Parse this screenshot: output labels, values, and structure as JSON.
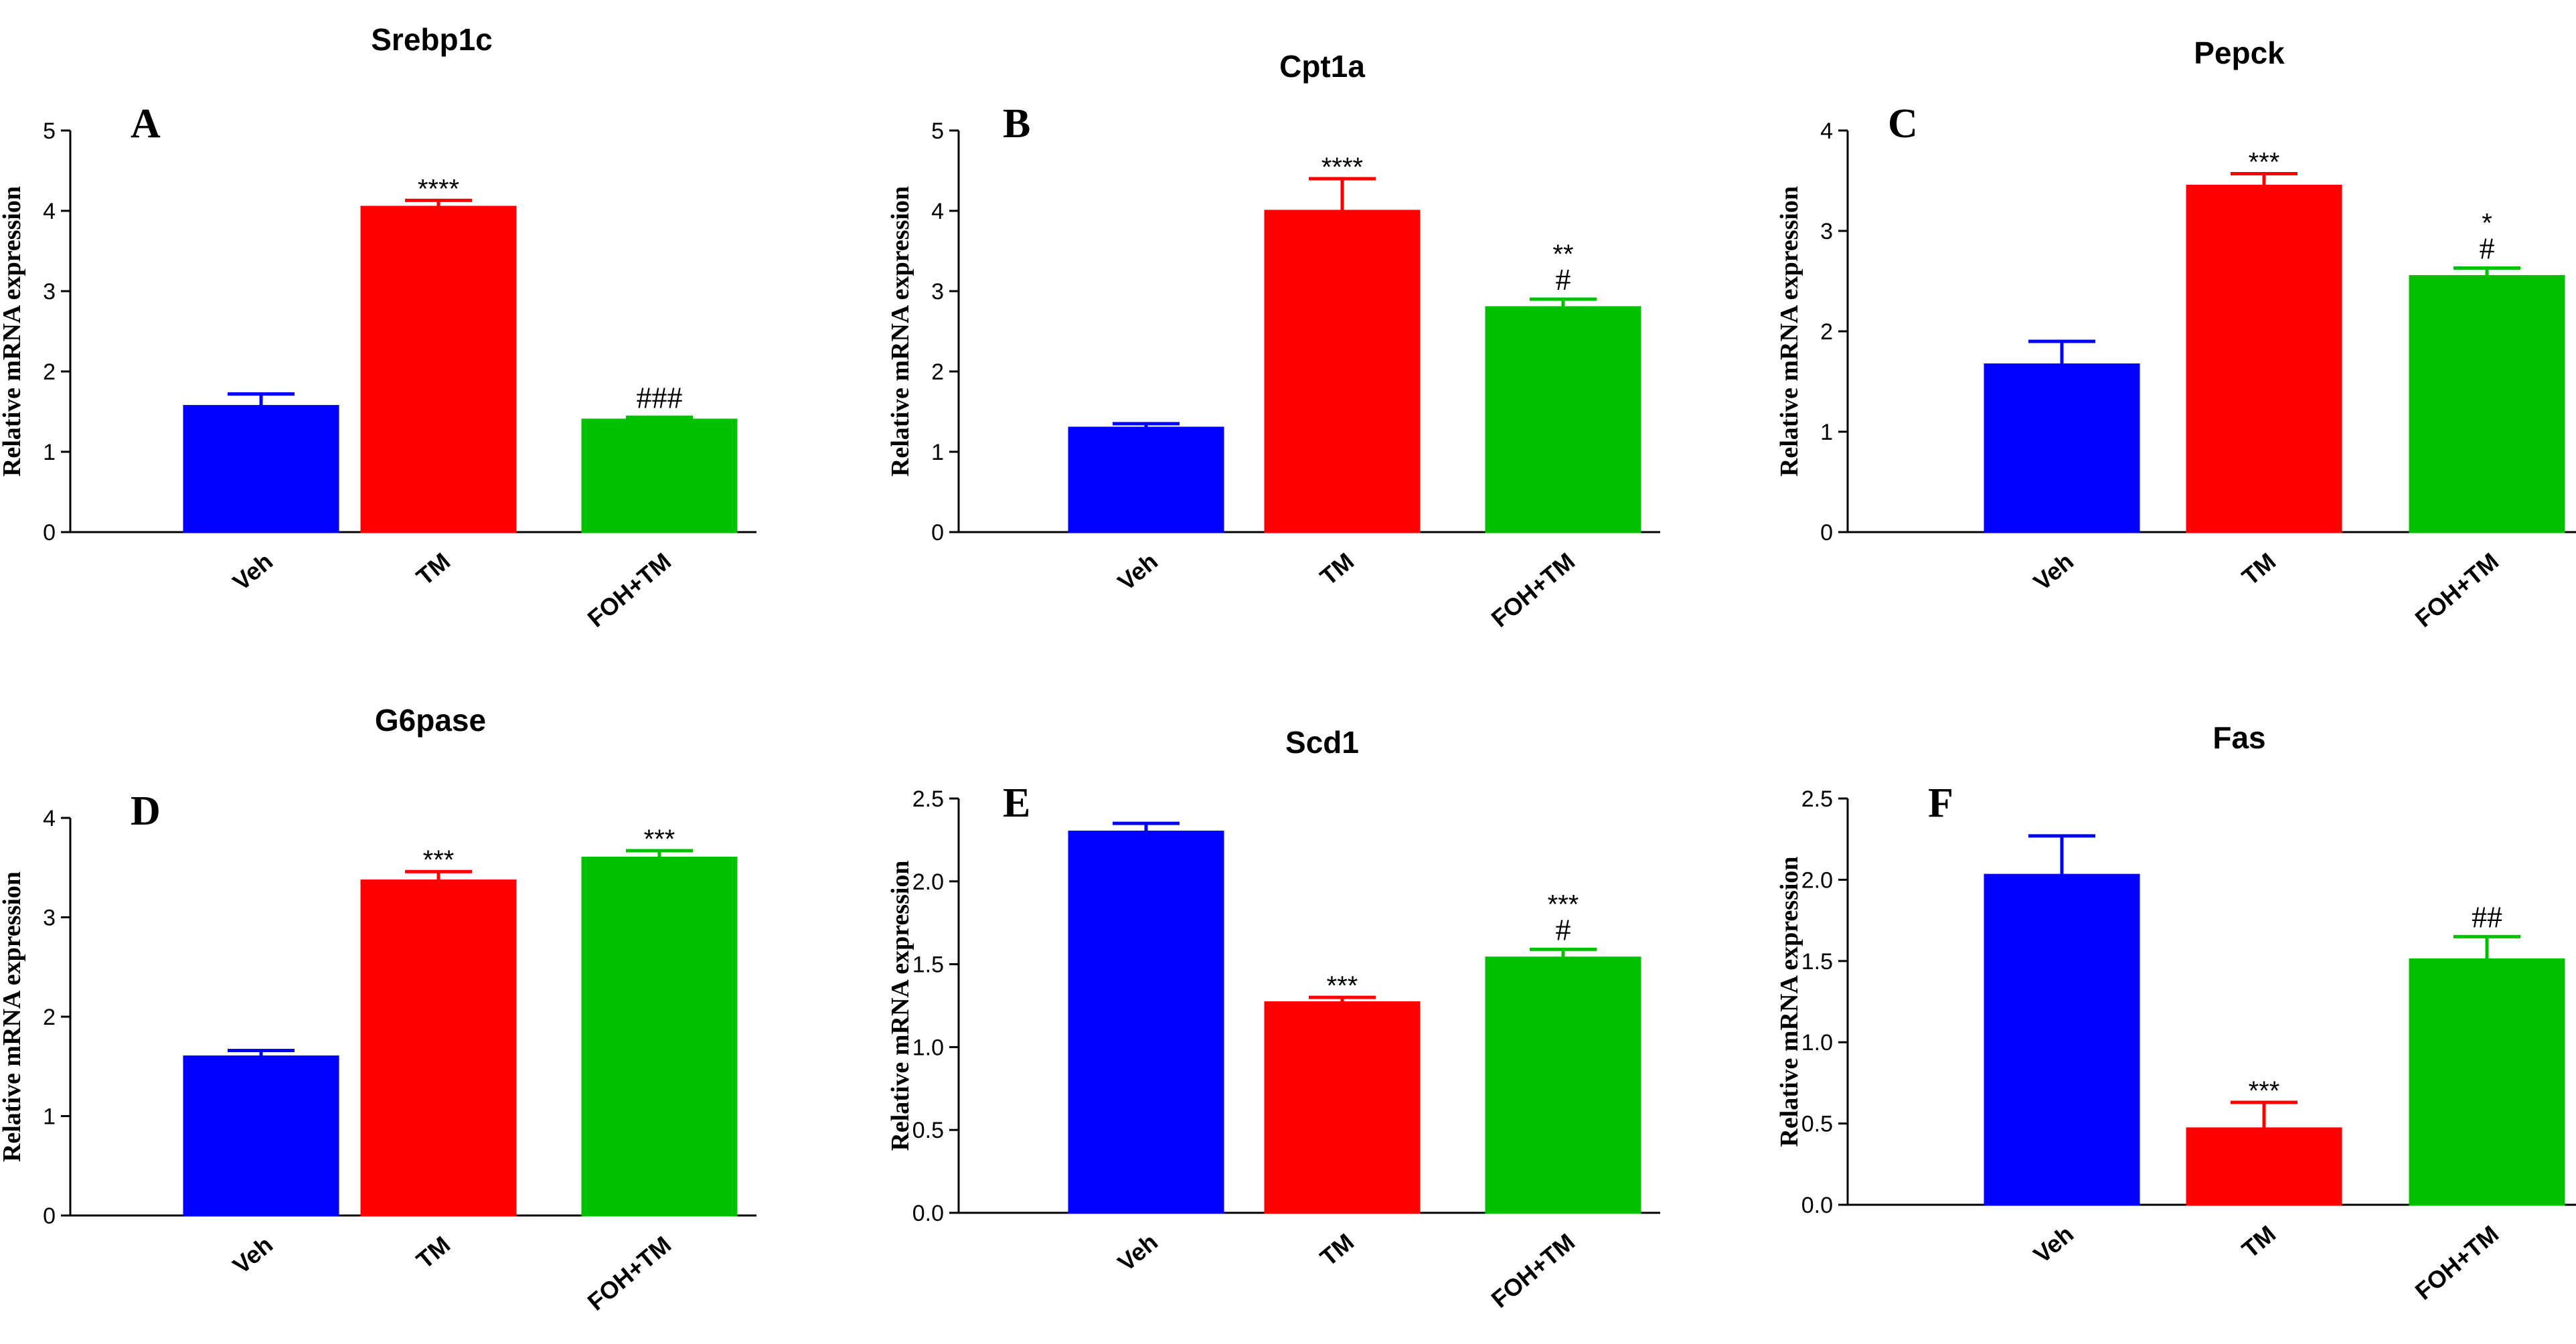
{
  "chart_data": [
    {
      "type": "bar",
      "panel": "A",
      "title": "Srebp1c",
      "ylabel": "Relative mRNA expression",
      "categories": [
        "Veh",
        "TM",
        "FOH+TM"
      ],
      "values": [
        1.57,
        4.05,
        1.4
      ],
      "errors": [
        0.15,
        0.08,
        0.03
      ],
      "annotations": [
        [],
        [
          "****"
        ],
        [
          "###"
        ]
      ],
      "ylim": [
        0,
        5
      ],
      "yticks": [
        "0",
        "1",
        "2",
        "3",
        "4",
        "5"
      ],
      "colors": [
        "#0000ff",
        "#ff0000",
        "#00c000"
      ]
    },
    {
      "type": "bar",
      "panel": "B",
      "title": "Cpt1a",
      "ylabel": "Relative mRNA expression",
      "categories": [
        "Veh",
        "TM",
        "FOH+TM"
      ],
      "values": [
        1.3,
        4.0,
        2.8
      ],
      "errors": [
        0.05,
        0.4,
        0.1
      ],
      "annotations": [
        [],
        [
          "****"
        ],
        [
          "**",
          "#"
        ]
      ],
      "ylim": [
        0,
        5
      ],
      "yticks": [
        "0",
        "1",
        "2",
        "3",
        "4",
        "5"
      ],
      "colors": [
        "#0000ff",
        "#ff0000",
        "#00c000"
      ]
    },
    {
      "type": "bar",
      "panel": "C",
      "title": "Pepck",
      "ylabel": "Relative mRNA expression",
      "categories": [
        "Veh",
        "TM",
        "FOH+TM"
      ],
      "values": [
        1.67,
        3.45,
        2.55
      ],
      "errors": [
        0.23,
        0.12,
        0.08
      ],
      "annotations": [
        [],
        [
          "***"
        ],
        [
          "*",
          "#"
        ]
      ],
      "ylim": [
        0,
        4
      ],
      "yticks": [
        "0",
        "1",
        "2",
        "3",
        "4"
      ],
      "colors": [
        "#0000ff",
        "#ff0000",
        "#00c000"
      ]
    },
    {
      "type": "bar",
      "panel": "D",
      "title": "G6pase",
      "ylabel": "Relative mRNA expression",
      "categories": [
        "Veh",
        "TM",
        "FOH+TM"
      ],
      "values": [
        1.6,
        3.37,
        3.6
      ],
      "errors": [
        0.06,
        0.09,
        0.07
      ],
      "annotations": [
        [],
        [
          "***"
        ],
        [
          "***"
        ]
      ],
      "ylim": [
        0,
        4
      ],
      "yticks": [
        "0",
        "1",
        "2",
        "3",
        "4"
      ],
      "colors": [
        "#0000ff",
        "#ff0000",
        "#00c000"
      ]
    },
    {
      "type": "bar",
      "panel": "E",
      "title": "Scd1",
      "ylabel": "Relative mRNA expression",
      "categories": [
        "Veh",
        "TM",
        "FOH+TM"
      ],
      "values": [
        2.3,
        1.27,
        1.54
      ],
      "errors": [
        0.05,
        0.03,
        0.05
      ],
      "annotations": [
        [],
        [
          "***"
        ],
        [
          "***",
          "#"
        ]
      ],
      "ylim": [
        0,
        2.5
      ],
      "yticks": [
        "0.0",
        "0.5",
        "1.0",
        "1.5",
        "2.0",
        "2.5"
      ],
      "colors": [
        "#0000ff",
        "#ff0000",
        "#00c000"
      ]
    },
    {
      "type": "bar",
      "panel": "F",
      "title": "Fas",
      "ylabel": "Relative mRNA expression",
      "categories": [
        "Veh",
        "TM",
        "FOH+TM"
      ],
      "values": [
        2.03,
        0.47,
        1.51
      ],
      "errors": [
        0.24,
        0.16,
        0.14
      ],
      "annotations": [
        [],
        [
          "***"
        ],
        [
          "##"
        ]
      ],
      "ylim": [
        0,
        2.5
      ],
      "yticks": [
        "0.0",
        "0.5",
        "1.0",
        "1.5",
        "2.0",
        "2.5"
      ],
      "colors": [
        "#0000ff",
        "#ff0000",
        "#00c000"
      ]
    }
  ]
}
